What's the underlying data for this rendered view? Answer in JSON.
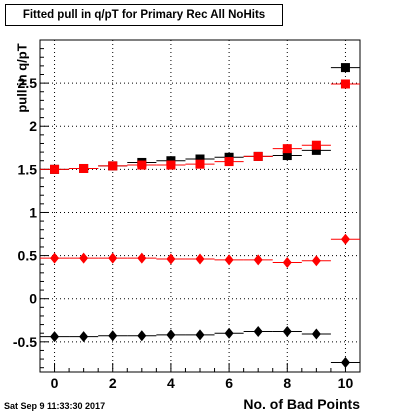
{
  "chart_data": {
    "type": "scatter",
    "title": "Fitted pull in q/pT for Primary Rec All NoHits",
    "xlabel": "No. of Bad Points",
    "ylabel": "pull in q/pT",
    "xlim": [
      -0.5,
      10.5
    ],
    "ylim": [
      -0.85,
      3.0
    ],
    "x_ticks": [
      0,
      2,
      4,
      6,
      8,
      10
    ],
    "x_tick_labels": [
      "0",
      "2",
      "4",
      "6",
      "8",
      "10"
    ],
    "y_ticks": [
      -0.5,
      0,
      0.5,
      1,
      1.5,
      2,
      2.5
    ],
    "y_tick_labels": [
      "-0.5",
      "0",
      "0.5",
      "1",
      "1.5",
      "2",
      "2.5"
    ],
    "grid": true,
    "x": [
      0,
      1,
      2,
      3,
      4,
      5,
      6,
      7,
      8,
      9,
      10
    ],
    "series": [
      {
        "marker": "square",
        "color": "#000000",
        "values": [
          1.5,
          1.51,
          1.54,
          1.58,
          1.6,
          1.62,
          1.64,
          1.65,
          1.66,
          1.72,
          2.68
        ]
      },
      {
        "marker": "square",
        "color": "#ff0000",
        "values": [
          1.5,
          1.51,
          1.54,
          1.55,
          1.55,
          1.56,
          1.59,
          1.65,
          1.74,
          1.78,
          2.49
        ]
      },
      {
        "marker": "diamond",
        "color": "#ff0000",
        "values": [
          0.47,
          0.47,
          0.47,
          0.47,
          0.46,
          0.46,
          0.45,
          0.45,
          0.42,
          0.44,
          0.69
        ]
      },
      {
        "marker": "diamond",
        "color": "#000000",
        "values": [
          -0.44,
          -0.44,
          -0.43,
          -0.43,
          -0.42,
          -0.42,
          -0.4,
          -0.38,
          -0.38,
          -0.41,
          -0.74
        ]
      }
    ]
  },
  "datestamp": "Sat Sep  9 11:33:30 2017"
}
